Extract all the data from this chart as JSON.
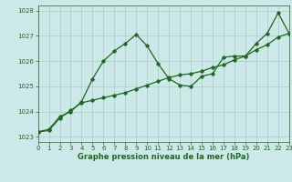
{
  "title": "Graphe pression niveau de la mer (hPa)",
  "bg_color": "#cce8e8",
  "line_color": "#1a6b1a",
  "grid_color": "#aacccc",
  "x_min": 0,
  "x_max": 23,
  "y_min": 1022.8,
  "y_max": 1028.2,
  "series1_x": [
    0,
    1,
    2,
    3,
    4,
    5,
    6,
    7,
    8,
    9,
    10,
    11,
    12,
    13,
    14,
    15,
    16,
    17,
    18,
    19,
    20,
    21,
    22,
    23
  ],
  "series1_y": [
    1023.2,
    1023.3,
    1023.8,
    1024.0,
    1024.4,
    1025.3,
    1026.0,
    1026.4,
    1026.7,
    1027.05,
    1026.6,
    1025.9,
    1025.3,
    1025.05,
    1025.0,
    1025.4,
    1025.5,
    1026.15,
    1026.2,
    1026.2,
    1026.7,
    1027.1,
    1027.9,
    1027.1
  ],
  "series2_x": [
    0,
    1,
    2,
    3,
    4,
    5,
    6,
    7,
    8,
    9,
    10,
    11,
    12,
    13,
    14,
    15,
    16,
    17,
    18,
    19,
    20,
    21,
    22,
    23
  ],
  "series2_y": [
    1023.2,
    1023.25,
    1023.75,
    1024.05,
    1024.35,
    1024.45,
    1024.55,
    1024.65,
    1024.75,
    1024.9,
    1025.05,
    1025.2,
    1025.35,
    1025.45,
    1025.5,
    1025.6,
    1025.75,
    1025.85,
    1026.05,
    1026.2,
    1026.45,
    1026.65,
    1026.95,
    1027.1
  ],
  "yticks": [
    1023,
    1024,
    1025,
    1026,
    1027,
    1028
  ],
  "xticks": [
    0,
    1,
    2,
    3,
    4,
    5,
    6,
    7,
    8,
    9,
    10,
    11,
    12,
    13,
    14,
    15,
    16,
    17,
    18,
    19,
    20,
    21,
    22,
    23
  ],
  "xlabel_fontsize": 6.0,
  "tick_fontsize": 5.0
}
